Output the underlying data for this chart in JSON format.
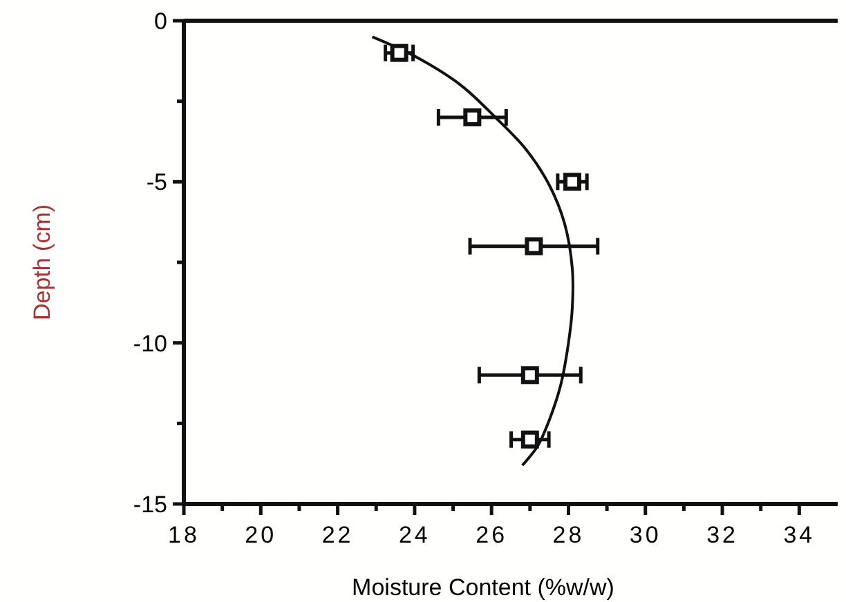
{
  "chart_data": {
    "type": "scatter",
    "xlabel": "Moisture Content (%w/w)",
    "ylabel": "Depth (cm)",
    "xlim": [
      18,
      35
    ],
    "ylim": [
      -15,
      0
    ],
    "xticks": [
      18,
      {
        "value": 19,
        "label": null
      },
      20,
      {
        "value": 21,
        "label": null
      },
      22,
      {
        "value": 23,
        "label": null
      },
      24,
      {
        "value": 25,
        "label": null
      },
      26,
      {
        "value": 27,
        "label": null
      },
      28,
      {
        "value": 29,
        "label": null
      },
      30,
      {
        "value": 31,
        "label": null
      },
      32,
      {
        "value": 33,
        "label": null
      },
      34
    ],
    "yticks": [
      -15,
      {
        "value": -12.5,
        "label": null
      },
      -10,
      {
        "value": -7.5,
        "label": null
      },
      -5,
      {
        "value": -2.5,
        "label": null
      },
      0
    ],
    "series": [
      {
        "type": "line",
        "color": "#111111",
        "x": [
          22.9,
          24.0,
          25.2,
          26.1,
          26.9,
          27.5,
          27.9,
          28.1,
          28.1,
          28.0,
          27.8,
          27.5,
          27.2,
          26.8
        ],
        "values": [
          -0.5,
          -1.1,
          -2.0,
          -3.0,
          -4.0,
          -5.1,
          -6.3,
          -7.7,
          -8.9,
          -10.0,
          -11.3,
          -12.4,
          -13.2,
          -13.8
        ]
      },
      {
        "color": "#111111",
        "marker": "square",
        "x": [
          23.6,
          25.5,
          28.1,
          27.1,
          27.0,
          27.0
        ],
        "values": [
          -1,
          -3,
          -5,
          -7,
          -11,
          -13
        ],
        "xerrors": [
          0.36,
          0.88,
          0.38,
          1.66,
          1.32,
          0.49
        ]
      }
    ]
  }
}
